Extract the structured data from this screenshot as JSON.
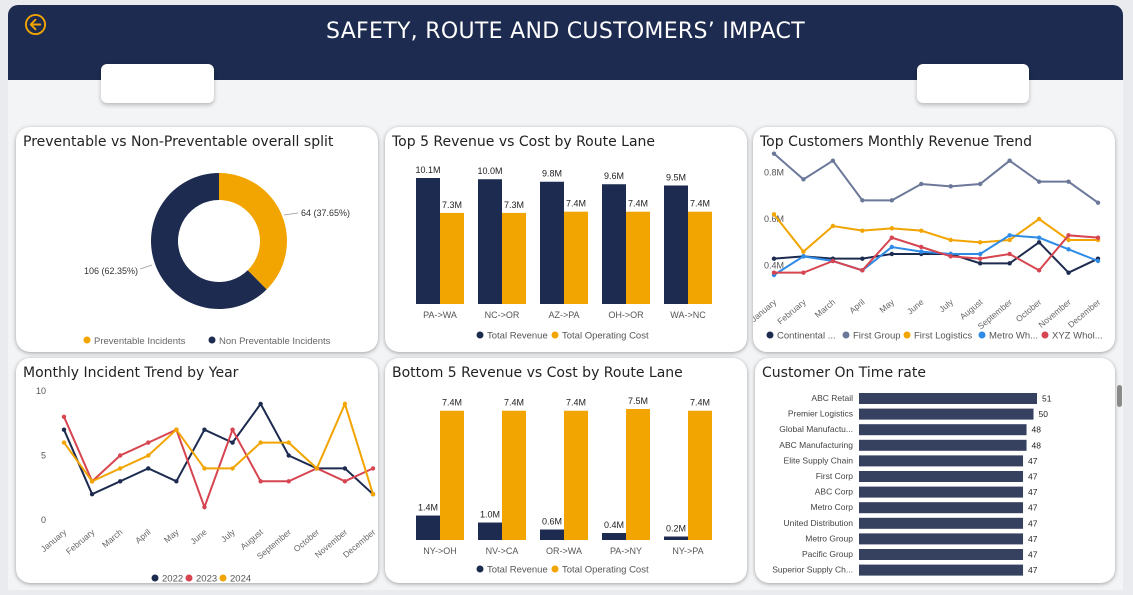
{
  "header": {
    "title": "SAFETY, ROUTE AND CUSTOMERS’ IMPACT",
    "back_icon": "arrow-left-circle-icon",
    "accent": "#f2a400",
    "bg": "#1c2b4f"
  },
  "colors": {
    "navy": "#1c2b4f",
    "orange": "#f2a400",
    "red": "#d64550",
    "slate": "#6b7899",
    "blue": "#2e8be6",
    "bar": "#35415f"
  },
  "donut": {
    "title": "Preventable vs Non-Preventable overall split",
    "chart_data": {
      "type": "pie",
      "donut": true,
      "slices": [
        {
          "label": "Preventable Incidents",
          "value": 64,
          "display": "64 (37.65%)"
        },
        {
          "label": "Non Preventable Incidents",
          "value": 106,
          "display": "106 (62.35%)"
        }
      ],
      "legend": [
        "Preventable Incidents",
        "Non Preventable Incidents"
      ]
    }
  },
  "top5": {
    "title": "Top 5 Revenue vs Cost by Route Lane",
    "chart_data": {
      "type": "bar",
      "categories": [
        "PA->WA",
        "NC->OR",
        "AZ->PA",
        "OH->OR",
        "WA->NC"
      ],
      "series": [
        {
          "name": "Total Revenue",
          "values": [
            10.1,
            10.0,
            9.8,
            9.6,
            9.5
          ],
          "labels": [
            "10.1M",
            "10.0M",
            "9.8M",
            "9.6M",
            "9.5M"
          ]
        },
        {
          "name": "Total Operating Cost",
          "values": [
            7.3,
            7.3,
            7.4,
            7.4,
            7.4
          ],
          "labels": [
            "7.3M",
            "7.3M",
            "7.4M",
            "7.4M",
            "7.4M"
          ]
        }
      ],
      "ylim": [
        0,
        10.1
      ]
    }
  },
  "bottom5": {
    "title": "Bottom 5 Revenue vs Cost by Route Lane",
    "chart_data": {
      "type": "bar",
      "categories": [
        "NY->OH",
        "NV->CA",
        "OR->WA",
        "PA->NY",
        "NY->PA"
      ],
      "series": [
        {
          "name": "Total Revenue",
          "values": [
            1.4,
            1.0,
            0.6,
            0.4,
            0.2
          ],
          "labels": [
            "1.4M",
            "1.0M",
            "0.6M",
            "0.4M",
            "0.2M"
          ]
        },
        {
          "name": "Total Operating Cost",
          "values": [
            7.4,
            7.4,
            7.4,
            7.5,
            7.4
          ],
          "labels": [
            "7.4M",
            "7.4M",
            "7.4M",
            "7.5M",
            "7.4M"
          ]
        }
      ],
      "ylim": [
        0,
        7.5
      ]
    }
  },
  "customers": {
    "title": "Top Customers Monthly Revenue Trend",
    "chart_data": {
      "type": "line",
      "x": [
        "January",
        "February",
        "March",
        "April",
        "May",
        "June",
        "July",
        "August",
        "September",
        "October",
        "November",
        "December"
      ],
      "yticks": [
        "0.8M",
        "0.6M",
        "0.4M"
      ],
      "ylim": [
        0.3,
        0.9
      ],
      "series": [
        {
          "name": "Continental ...",
          "values": [
            0.43,
            0.44,
            0.43,
            0.43,
            0.45,
            0.45,
            0.45,
            0.41,
            0.41,
            0.5,
            0.37,
            0.43
          ]
        },
        {
          "name": "First Group",
          "values": [
            0.88,
            0.77,
            0.85,
            0.68,
            0.68,
            0.75,
            0.74,
            0.75,
            0.85,
            0.76,
            0.76,
            0.67
          ]
        },
        {
          "name": "First Logistics",
          "values": [
            0.62,
            0.46,
            0.57,
            0.55,
            0.56,
            0.55,
            0.51,
            0.5,
            0.51,
            0.6,
            0.51,
            0.51
          ]
        },
        {
          "name": "Metro Wh...",
          "values": [
            0.36,
            0.44,
            0.42,
            0.38,
            0.48,
            0.46,
            0.45,
            0.45,
            0.53,
            0.52,
            0.47,
            0.42
          ]
        },
        {
          "name": "XYZ Whol...",
          "values": [
            0.37,
            0.37,
            0.42,
            0.38,
            0.52,
            0.48,
            0.44,
            0.43,
            0.45,
            0.38,
            0.53,
            0.52
          ]
        }
      ]
    }
  },
  "incidents": {
    "title": "Monthly Incident Trend by Year",
    "chart_data": {
      "type": "line",
      "x": [
        "January",
        "February",
        "March",
        "April",
        "May",
        "June",
        "July",
        "August",
        "September",
        "October",
        "November",
        "December"
      ],
      "yticks": [
        "10",
        "5",
        "0"
      ],
      "ylim": [
        0,
        10
      ],
      "series": [
        {
          "name": "2022",
          "values": [
            7,
            2,
            3,
            4,
            3,
            7,
            6,
            9,
            5,
            4,
            4,
            2
          ]
        },
        {
          "name": "2023",
          "values": [
            8,
            3,
            5,
            6,
            7,
            1,
            7,
            3,
            3,
            4,
            3,
            4
          ]
        },
        {
          "name": "2024",
          "values": [
            6,
            3,
            4,
            5,
            7,
            4,
            4,
            6,
            6,
            4,
            9,
            2
          ]
        }
      ]
    }
  },
  "ontime": {
    "title": "Customer On Time rate",
    "chart_data": {
      "type": "bar",
      "orientation": "horizontal",
      "categories": [
        "ABC Retail",
        "Premier Logistics",
        "Global Manufactu...",
        "ABC Manufacturing",
        "Elite Supply Chain",
        "First Corp",
        "ABC Corp",
        "Metro Corp",
        "United Distribution",
        "Metro Group",
        "Pacific Group",
        "Superior Supply Ch..."
      ],
      "values": [
        51,
        50,
        48,
        48,
        47,
        47,
        47,
        47,
        47,
        47,
        47,
        47
      ],
      "labels": [
        "51",
        "50",
        "48",
        "48",
        "47",
        "47",
        "47",
        "47",
        "47",
        "47",
        "47",
        "47"
      ]
    }
  }
}
